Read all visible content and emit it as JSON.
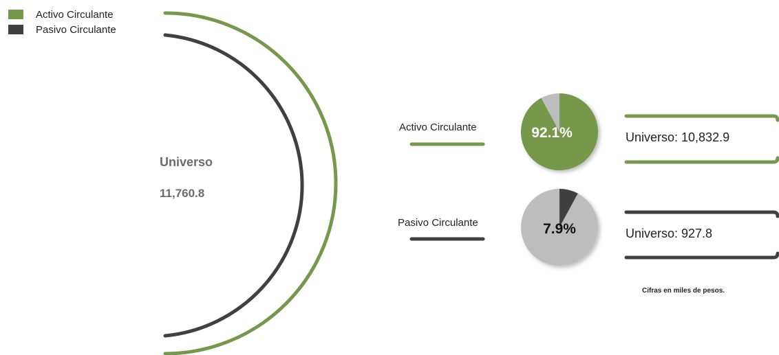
{
  "legend": [
    {
      "label": "Activo Circulante",
      "color": "#76984c"
    },
    {
      "label": "Pasivo Circulante",
      "color": "#404040"
    }
  ],
  "universe": {
    "title": "Universo",
    "value": "11,760.8"
  },
  "items": [
    {
      "label": "Activo Circulante",
      "percent": 92.1,
      "percent_label": "92.1%",
      "box_text": "Universo: 10,832.9",
      "color": "#76984c"
    },
    {
      "label": "Pasivo Circulante",
      "percent": 7.9,
      "percent_label": "7.9%",
      "box_text": "Universo: 927.8",
      "color": "#404040"
    }
  ],
  "footnote": "Cifras en miles de pesos.",
  "chart_data": {
    "type": "pie",
    "total": 11760.8,
    "series": [
      {
        "name": "Activo Circulante",
        "value": 10832.9,
        "percent": 92.1
      },
      {
        "name": "Pasivo Circulante",
        "value": 927.8,
        "percent": 7.9
      }
    ],
    "colors": {
      "Activo Circulante": "#76984c",
      "Pasivo Circulante": "#404040",
      "remainder": "#bdbdbd"
    }
  }
}
